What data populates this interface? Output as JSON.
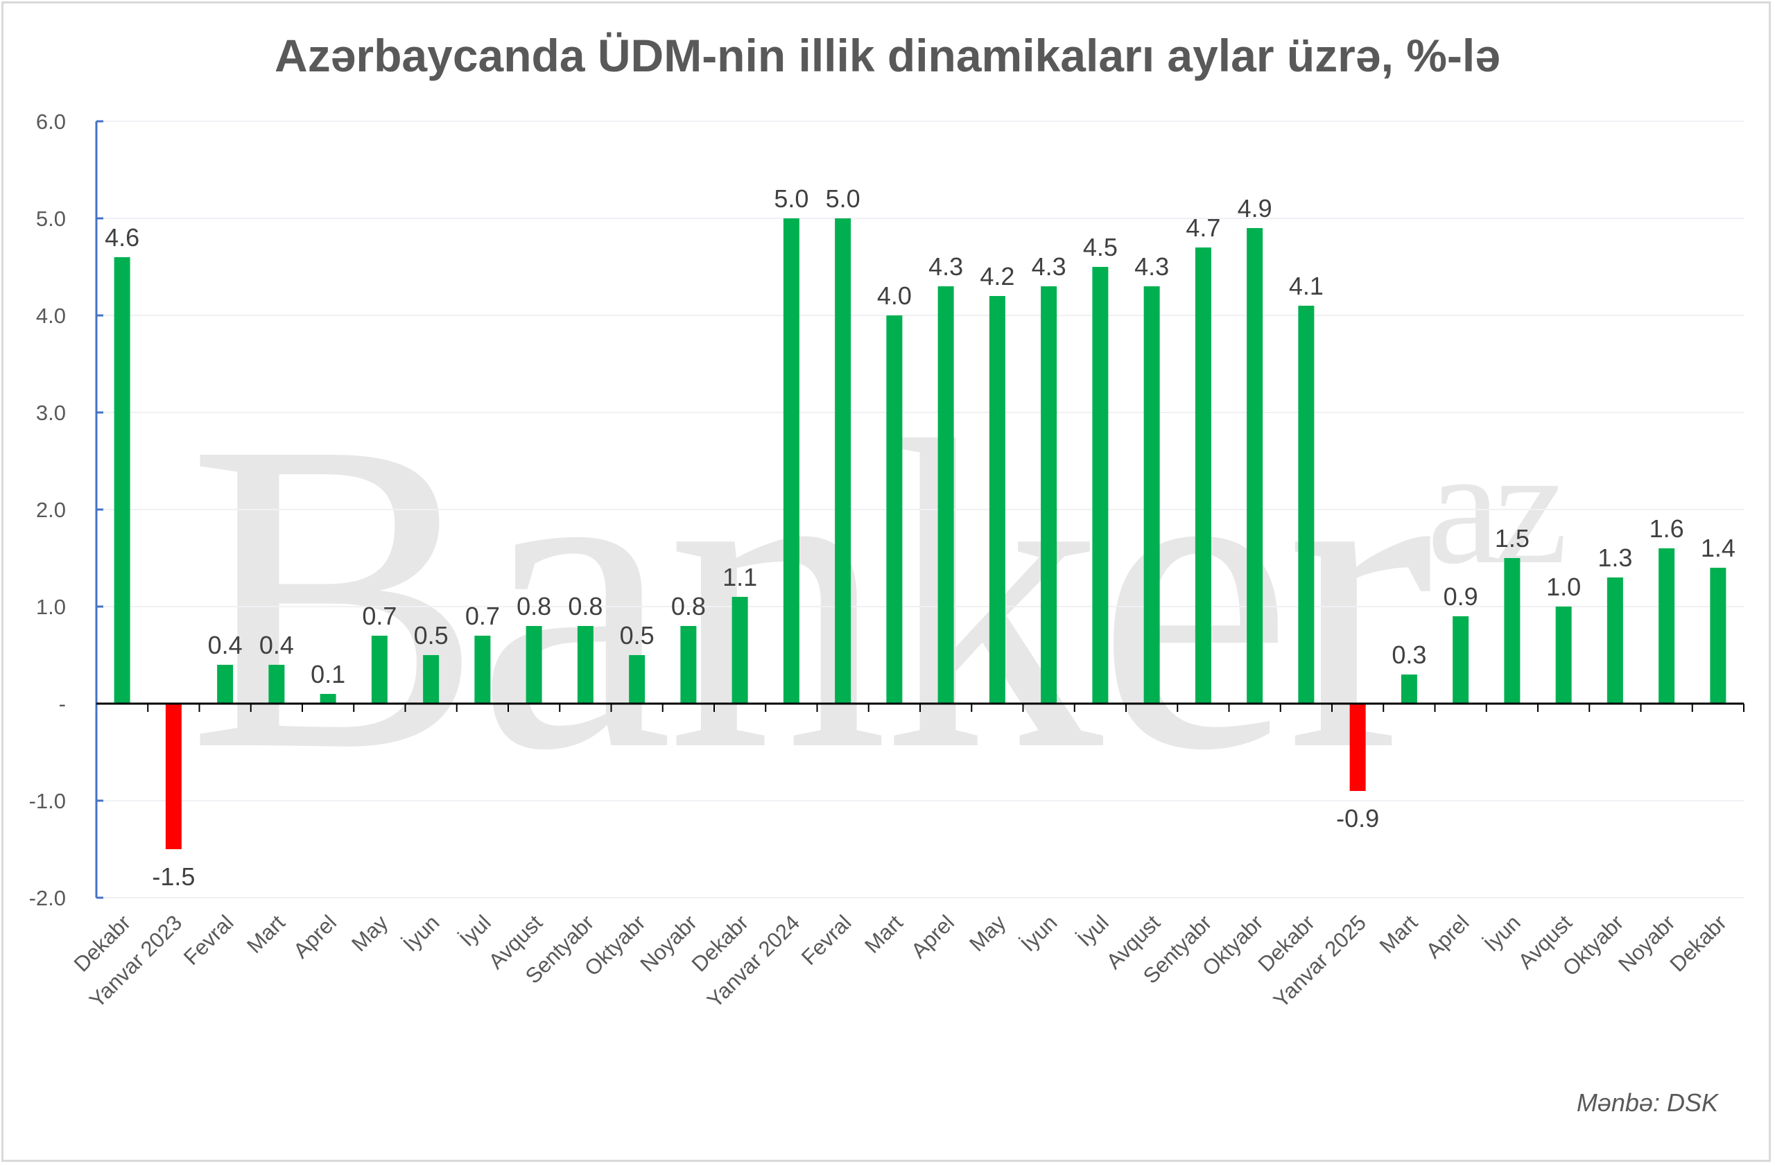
{
  "chart_data": {
    "type": "bar",
    "title": "Azərbaycanda ÜDM-nin illik dinamikaları aylar üzrə, %-lə",
    "source": "Mənbə: DSK",
    "watermark": "Banker.az",
    "categories": [
      "Dekabr",
      "Yanvar 2023",
      "Fevral",
      "Mart",
      "Aprel",
      "May",
      "İyun",
      "İyul",
      "Avqust",
      "Sentyabr",
      "Oktyabr",
      "Noyabr",
      "Dekabr",
      "Yanvar 2024",
      "Fevral",
      "Mart",
      "Aprel",
      "May",
      "İyun",
      "İyul",
      "Avqust",
      "Sentyabr",
      "Oktyabr",
      "Dekabr",
      "Yanvar 2025",
      "Mart",
      "Aprel",
      "İyun",
      "Avqust",
      "Oktyabr",
      "Noyabr",
      "Dekabr"
    ],
    "values": [
      4.6,
      -1.5,
      0.4,
      0.4,
      0.1,
      0.7,
      0.5,
      0.7,
      0.8,
      0.8,
      0.5,
      0.8,
      1.1,
      5.0,
      5.0,
      4.0,
      4.3,
      4.2,
      4.3,
      4.5,
      4.3,
      4.7,
      4.9,
      4.1,
      -0.9,
      0.3,
      0.9,
      1.5,
      1.0,
      1.3,
      1.6,
      1.4
    ],
    "ylim": [
      -2,
      6
    ],
    "yticks": [
      "6.0",
      "5.0",
      "4.0",
      "3.0",
      "2.0",
      "1.0",
      "-",
      "-1.0",
      "-2.0"
    ],
    "ytick_values": [
      6,
      5,
      4,
      3,
      2,
      1,
      0,
      -1,
      -2
    ],
    "grid": true,
    "colors": {
      "positive": "#00B050",
      "negative": "#FF0000",
      "axis": "#4472C4",
      "text": "#595959"
    }
  }
}
